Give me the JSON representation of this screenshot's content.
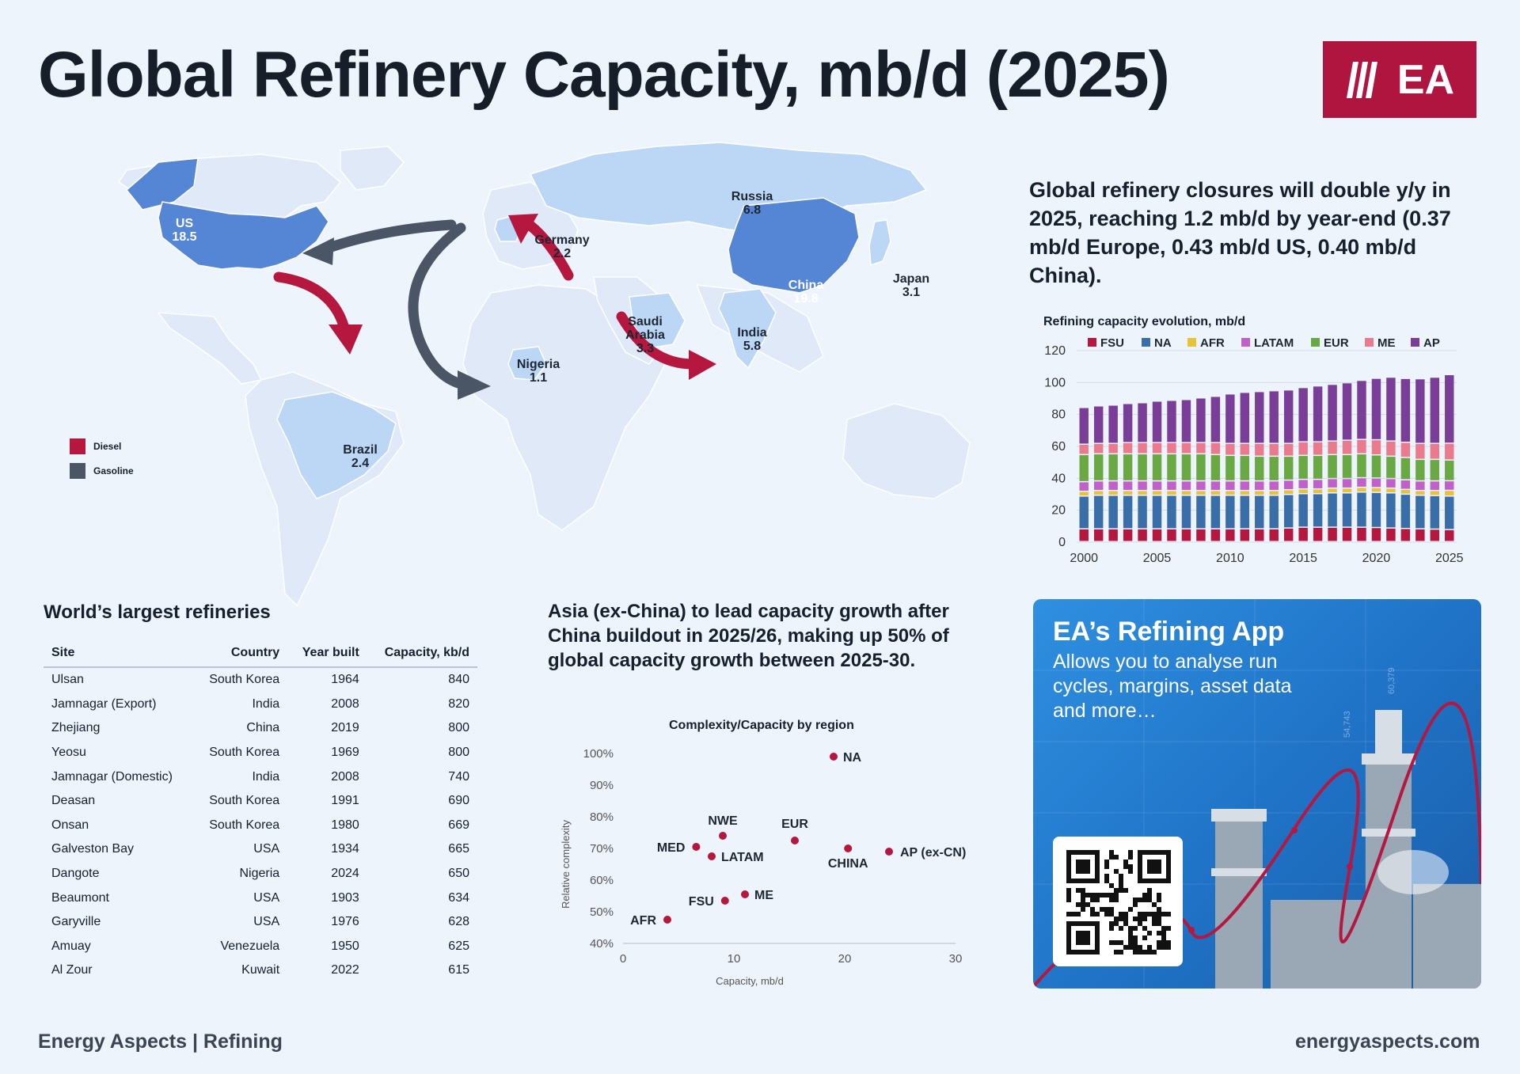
{
  "title": "Global Refinery Capacity, mb/d (2025)",
  "logo": {
    "text": "EA",
    "color": "#b01540"
  },
  "map": {
    "regions": [
      {
        "name": "US",
        "value": "18.5"
      },
      {
        "name": "Russia",
        "value": "6.8"
      },
      {
        "name": "Germany",
        "value": "2.2"
      },
      {
        "name": "China",
        "value": "19.8"
      },
      {
        "name": "Japan",
        "value": "3.1"
      },
      {
        "name": "Saudi Arabia",
        "value": "3.3"
      },
      {
        "name": "India",
        "value": "5.8"
      },
      {
        "name": "Nigeria",
        "value": "1.1"
      },
      {
        "name": "Brazil",
        "value": "2.4"
      }
    ],
    "legend": [
      {
        "label": "Diesel",
        "color": "#b5173f"
      },
      {
        "label": "Gasoline",
        "color": "#4a5566"
      }
    ]
  },
  "closures_text": "Global refinery closures will double y/y in 2025, reaching 1.2 mb/d by year-end (0.37 mb/d Europe, 0.43 mb/d US, 0.40 mb/d China).",
  "table": {
    "title": "World’s largest refineries",
    "headers": [
      "Site",
      "Country",
      "Year built",
      "Capacity, kb/d"
    ],
    "rows": [
      [
        "Ulsan",
        "South Korea",
        "1964",
        "840"
      ],
      [
        "Jamnagar (Export)",
        "India",
        "2008",
        "820"
      ],
      [
        "Zhejiang",
        "China",
        "2019",
        "800"
      ],
      [
        "Yeosu",
        "South Korea",
        "1969",
        "800"
      ],
      [
        "Jamnagar (Domestic)",
        "India",
        "2008",
        "740"
      ],
      [
        "Deasan",
        "South Korea",
        "1991",
        "690"
      ],
      [
        "Onsan",
        "South Korea",
        "1980",
        "669"
      ],
      [
        "Galveston Bay",
        "USA",
        "1934",
        "665"
      ],
      [
        "Dangote",
        "Nigeria",
        "2024",
        "650"
      ],
      [
        "Beaumont",
        "USA",
        "1903",
        "634"
      ],
      [
        "Garyville",
        "USA",
        "1976",
        "628"
      ],
      [
        "Amuay",
        "Venezuela",
        "1950",
        "625"
      ],
      [
        "Al Zour",
        "Kuwait",
        "2022",
        "615"
      ]
    ]
  },
  "growth_text": "Asia (ex-China) to lead capacity growth after China buildout in 2025/26, making up 50% of global capacity growth between 2025-30.",
  "app": {
    "title": "EA’s Refining App",
    "subtitle": "Allows you to analyse run cycles, margins, asset data and more…",
    "chart_numbers": [
      "54,743",
      "60,379"
    ]
  },
  "footer": {
    "left": "Energy Aspects | Refining",
    "right": "energyaspects.com"
  },
  "chart_data": [
    {
      "type": "bar",
      "stacked": true,
      "title": "Refining capacity evolution, mb/d",
      "xlabel": "",
      "ylabel": "",
      "ylim": [
        0,
        120
      ],
      "yticks": [
        0,
        20,
        40,
        60,
        80,
        100,
        120
      ],
      "xtick_labels": [
        "2000",
        "2005",
        "2010",
        "2015",
        "2020",
        "2025"
      ],
      "legend_position": "top",
      "categories": [
        "2000",
        "2001",
        "2002",
        "2003",
        "2004",
        "2005",
        "2006",
        "2007",
        "2008",
        "2009",
        "2010",
        "2011",
        "2012",
        "2013",
        "2014",
        "2015",
        "2016",
        "2017",
        "2018",
        "2019",
        "2020",
        "2021",
        "2022",
        "2023",
        "2024",
        "2025"
      ],
      "series": [
        {
          "name": "FSU",
          "color": "#b5173f",
          "values": [
            8,
            8,
            8,
            8,
            8,
            8,
            8,
            8,
            8,
            8,
            8,
            8,
            8,
            8,
            8.5,
            9,
            9,
            9,
            9,
            9,
            8.8,
            8.5,
            8.2,
            8,
            7.8,
            7.5
          ]
        },
        {
          "name": "NA",
          "color": "#3a6ea8",
          "values": [
            20.5,
            21,
            21,
            21,
            21,
            21,
            21,
            21,
            21,
            21,
            21,
            21,
            21,
            21,
            21,
            21,
            21,
            21.5,
            21.5,
            22,
            22,
            22,
            21.5,
            21,
            21,
            21
          ]
        },
        {
          "name": "AFR",
          "color": "#e8c33a",
          "values": [
            3,
            3,
            3,
            3,
            3,
            3,
            3,
            3,
            3,
            3,
            3,
            3,
            3,
            3,
            3,
            3,
            3,
            3,
            3,
            3,
            3,
            3,
            3,
            3,
            3.2,
            3.6
          ]
        },
        {
          "name": "LATAM",
          "color": "#c15fcb",
          "values": [
            6,
            6,
            6,
            6,
            6,
            6,
            6,
            6,
            6,
            6,
            6,
            6,
            6,
            6,
            6,
            6,
            6,
            6,
            6,
            6,
            6,
            6,
            6,
            6,
            6,
            6
          ]
        },
        {
          "name": "EUR",
          "color": "#6aa843",
          "values": [
            17,
            17,
            17,
            17,
            17,
            17,
            17,
            17,
            17,
            16.5,
            16,
            16,
            15.5,
            15.5,
            15,
            15,
            15,
            15,
            15,
            15,
            14.5,
            14,
            14,
            13.5,
            13.5,
            13
          ]
        },
        {
          "name": "ME",
          "color": "#ea7a8e",
          "values": [
            6.5,
            6.5,
            6.5,
            7,
            7,
            7,
            7,
            7,
            7,
            7.5,
            7.5,
            7.5,
            8,
            8,
            8,
            8.5,
            8.5,
            8.5,
            9,
            9,
            9.5,
            9.5,
            9.5,
            10,
            10,
            10.5
          ]
        },
        {
          "name": "AP",
          "color": "#7a3e98",
          "values": [
            23,
            23.5,
            24,
            24.5,
            25,
            26,
            26.5,
            27,
            28,
            29,
            31,
            32,
            32.5,
            33,
            33.5,
            34,
            35,
            35.5,
            36,
            37,
            38.5,
            40,
            40,
            40.5,
            41.5,
            43
          ]
        }
      ]
    },
    {
      "type": "scatter",
      "title": "Complexity/Capacity by region",
      "xlabel": "Capacity, mb/d",
      "ylabel": "Relative complexity",
      "xlim": [
        0,
        30
      ],
      "ylim": [
        40,
        100
      ],
      "xticks": [
        0,
        10,
        20,
        30
      ],
      "yticks": [
        40,
        50,
        60,
        70,
        80,
        90,
        100
      ],
      "ytick_suffix": "%",
      "color": "#b5173f",
      "points": [
        {
          "label": "NA",
          "x": 19,
          "y": 99
        },
        {
          "label": "NWE",
          "x": 9,
          "y": 74
        },
        {
          "label": "MED",
          "x": 6.6,
          "y": 70.5
        },
        {
          "label": "LATAM",
          "x": 8,
          "y": 67.5
        },
        {
          "label": "EUR",
          "x": 15.5,
          "y": 72.5
        },
        {
          "label": "CHINA",
          "x": 20.3,
          "y": 70
        },
        {
          "label": "AP (ex-CN)",
          "x": 24,
          "y": 69
        },
        {
          "label": "ME",
          "x": 11,
          "y": 55.5
        },
        {
          "label": "FSU",
          "x": 9.2,
          "y": 53.5
        },
        {
          "label": "AFR",
          "x": 4,
          "y": 47.5
        }
      ]
    }
  ]
}
